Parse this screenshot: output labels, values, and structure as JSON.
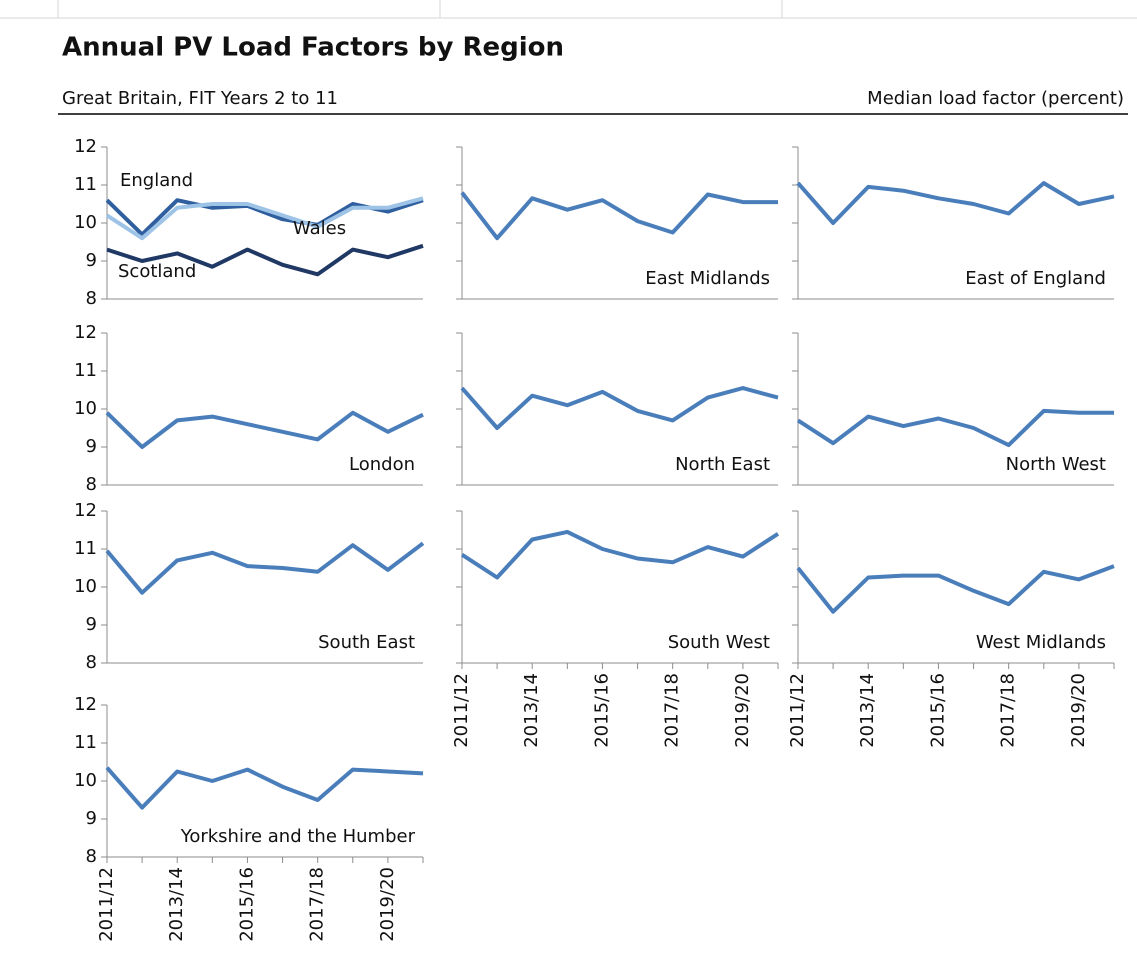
{
  "title": "Annual PV Load Factors by Region",
  "subtitle": "Great Britain, FIT Years 2 to 11",
  "unit_label": "Median load factor (percent)",
  "chart_data": [
    {
      "type": "line",
      "ylim": [
        8,
        12
      ],
      "yticks": [
        8,
        9,
        10,
        11,
        12
      ],
      "series": [
        {
          "name": "England",
          "color": "#2f5f9e",
          "values": [
            10.6,
            9.7,
            10.6,
            10.4,
            10.45,
            10.1,
            9.95,
            10.5,
            10.3,
            10.6
          ]
        },
        {
          "name": "Wales",
          "color": "#9dc3e6",
          "values": [
            10.2,
            9.6,
            10.4,
            10.5,
            10.5,
            10.2,
            9.9,
            10.4,
            10.4,
            10.65
          ]
        },
        {
          "name": "Scotland",
          "color": "#1f3864",
          "values": [
            9.3,
            9.0,
            9.2,
            8.85,
            9.3,
            8.9,
            8.65,
            9.3,
            9.1,
            9.4
          ]
        }
      ]
    },
    {
      "type": "line",
      "ylim": [
        8,
        12
      ],
      "yticks": [
        8,
        9,
        10,
        11,
        12
      ],
      "ytick_labels": false,
      "series": [
        {
          "name": "East Midlands",
          "color": "#4a7ebb",
          "values": [
            10.8,
            9.6,
            10.65,
            10.35,
            10.6,
            10.05,
            9.75,
            10.75,
            10.55,
            10.55
          ]
        }
      ]
    },
    {
      "type": "line",
      "ylim": [
        8,
        12
      ],
      "yticks": [
        8,
        9,
        10,
        11,
        12
      ],
      "ytick_labels": false,
      "series": [
        {
          "name": "East of England",
          "color": "#4a7ebb",
          "values": [
            11.05,
            10.0,
            10.95,
            10.85,
            10.65,
            10.5,
            10.25,
            11.05,
            10.5,
            10.7
          ]
        }
      ]
    },
    {
      "type": "line",
      "ylim": [
        8,
        12
      ],
      "yticks": [
        8,
        9,
        10,
        11,
        12
      ],
      "series": [
        {
          "name": "London",
          "color": "#4a7ebb",
          "values": [
            9.9,
            9.0,
            9.7,
            9.8,
            9.6,
            9.4,
            9.2,
            9.9,
            9.4,
            9.85
          ]
        }
      ]
    },
    {
      "type": "line",
      "ylim": [
        8,
        12
      ],
      "yticks": [
        8,
        9,
        10,
        11,
        12
      ],
      "ytick_labels": false,
      "series": [
        {
          "name": "North East",
          "color": "#4a7ebb",
          "values": [
            10.55,
            9.5,
            10.35,
            10.1,
            10.45,
            9.95,
            9.7,
            10.3,
            10.55,
            10.3
          ]
        }
      ]
    },
    {
      "type": "line",
      "ylim": [
        8,
        12
      ],
      "yticks": [
        8,
        9,
        10,
        11,
        12
      ],
      "ytick_labels": false,
      "series": [
        {
          "name": "North West",
          "color": "#4a7ebb",
          "values": [
            9.7,
            9.1,
            9.8,
            9.55,
            9.75,
            9.5,
            9.05,
            9.95,
            9.9,
            9.9
          ]
        }
      ]
    },
    {
      "type": "line",
      "ylim": [
        8,
        12
      ],
      "yticks": [
        8,
        9,
        10,
        11,
        12
      ],
      "series": [
        {
          "name": "South East",
          "color": "#4a7ebb",
          "values": [
            10.95,
            9.85,
            10.7,
            10.9,
            10.55,
            10.5,
            10.4,
            11.1,
            10.45,
            11.15
          ]
        }
      ]
    },
    {
      "type": "line",
      "ylim": [
        8,
        12
      ],
      "yticks": [
        8,
        9,
        10,
        11,
        12
      ],
      "ytick_labels": false,
      "categories": [
        "2011/12",
        null,
        "2013/14",
        null,
        "2015/16",
        null,
        "2017/18",
        null,
        "2019/20",
        null
      ],
      "series": [
        {
          "name": "South West",
          "color": "#4a7ebb",
          "values": [
            10.85,
            10.25,
            11.25,
            11.45,
            11.0,
            10.75,
            10.65,
            11.05,
            10.8,
            11.4
          ]
        }
      ]
    },
    {
      "type": "line",
      "ylim": [
        8,
        12
      ],
      "yticks": [
        8,
        9,
        10,
        11,
        12
      ],
      "ytick_labels": false,
      "categories": [
        "2011/12",
        null,
        "2013/14",
        null,
        "2015/16",
        null,
        "2017/18",
        null,
        "2019/20",
        null
      ],
      "series": [
        {
          "name": "West Midlands",
          "color": "#4a7ebb",
          "values": [
            10.5,
            9.35,
            10.25,
            10.3,
            10.3,
            9.9,
            9.55,
            10.4,
            10.2,
            10.55
          ]
        }
      ]
    },
    {
      "type": "line",
      "ylim": [
        8,
        12
      ],
      "yticks": [
        8,
        9,
        10,
        11,
        12
      ],
      "categories": [
        "2011/12",
        null,
        "2013/14",
        null,
        "2015/16",
        null,
        "2017/18",
        null,
        "2019/20",
        null
      ],
      "series": [
        {
          "name": "Yorkshire and the Humber",
          "color": "#4a7ebb",
          "values": [
            10.35,
            9.3,
            10.25,
            10.0,
            10.3,
            9.85,
            9.5,
            10.3,
            10.25,
            10.2
          ]
        }
      ]
    }
  ]
}
